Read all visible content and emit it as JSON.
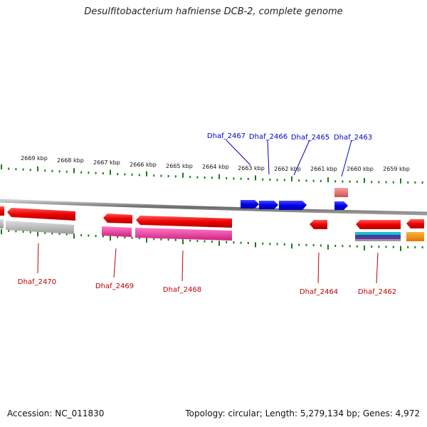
{
  "title": "Desulfitobacterium hafniense DCB-2, complete genome",
  "footer": {
    "accession": "Accession: NC_011830",
    "summary": "Topology: circular; Length: 5,279,134 bp; Genes: 4,972"
  },
  "scale_labels": [
    "2669 kbp",
    "2668 kbp",
    "2667 kbp",
    "2666 kbp",
    "2665 kbp",
    "2664 kbp",
    "2663 kbp",
    "2662 kbp",
    "2661 kbp",
    "2660 kbp",
    "2659 kbp"
  ],
  "gene_labels_top": [
    "Dhaf_2467",
    "Dhaf_2466",
    "Dhaf_2465",
    "Dhaf_2463"
  ],
  "gene_labels_bottom": [
    "Dhaf_2470",
    "Dhaf_2469",
    "Dhaf_2468",
    "Dhaf_2464",
    "Dhaf_2462"
  ],
  "colors": {
    "tick": "#1a7a1a",
    "backbone": "#7a7a7a",
    "gene_forward": "#0000ee",
    "gene_reverse": "#ee0000",
    "label_forward": "#0000cc",
    "label_reverse": "#c00000",
    "feature_gray": "#aaaaaa",
    "feature_pink": "#e8309a",
    "feature_salmon": "#f08080",
    "feature_orange": "#ff9900"
  }
}
